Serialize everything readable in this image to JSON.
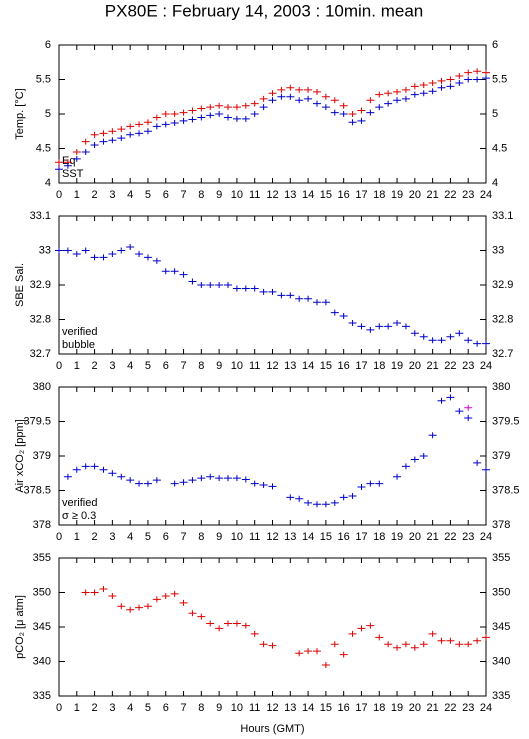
{
  "title": "PX80E : February 14, 2003 : 10min. mean",
  "chart_data": [
    {
      "type": "scatter",
      "ylabel": "Temp. [°C]",
      "x": [
        0,
        0.5,
        1,
        1.5,
        2,
        2.5,
        3,
        3.5,
        4,
        4.5,
        5,
        5.5,
        6,
        6.5,
        7,
        7.5,
        8,
        8.5,
        9,
        9.5,
        10,
        10.5,
        11,
        11.5,
        12,
        12.5,
        13,
        13.5,
        14,
        14.5,
        15,
        15.5,
        16,
        16.5,
        17,
        17.5,
        18,
        18.5,
        19,
        19.5,
        20,
        20.5,
        21,
        21.5,
        22,
        22.5,
        23,
        23.5,
        24
      ],
      "series": [
        {
          "name": "Eq",
          "color": "#dd0000",
          "values": [
            4.3,
            4.3,
            4.45,
            4.6,
            4.7,
            4.72,
            4.75,
            4.78,
            4.82,
            4.85,
            4.88,
            4.95,
            5.0,
            5.0,
            5.02,
            5.05,
            5.08,
            5.1,
            5.12,
            5.1,
            5.1,
            5.12,
            5.15,
            5.22,
            5.3,
            5.35,
            5.38,
            5.35,
            5.35,
            5.32,
            5.25,
            5.2,
            5.12,
            5.0,
            5.05,
            5.2,
            5.28,
            5.3,
            5.32,
            5.35,
            5.4,
            5.42,
            5.45,
            5.48,
            5.5,
            5.55,
            5.6,
            5.62,
            5.6
          ]
        },
        {
          "name": "SST",
          "color": "#0000cc",
          "values": [
            4.2,
            4.25,
            4.35,
            4.45,
            4.55,
            4.6,
            4.62,
            4.65,
            4.7,
            4.72,
            4.75,
            4.82,
            4.85,
            4.87,
            4.9,
            4.92,
            4.95,
            4.98,
            5.0,
            4.95,
            4.93,
            4.93,
            5.0,
            5.1,
            5.2,
            5.25,
            5.25,
            5.2,
            5.22,
            5.15,
            5.1,
            5.02,
            5.0,
            4.88,
            4.9,
            5.02,
            5.1,
            5.15,
            5.2,
            5.22,
            5.28,
            5.3,
            5.33,
            5.38,
            5.4,
            5.45,
            5.5,
            5.5,
            5.52
          ]
        }
      ],
      "xlim": [
        0,
        24
      ],
      "xticks": [
        0,
        1,
        2,
        3,
        4,
        5,
        6,
        7,
        8,
        9,
        10,
        11,
        12,
        13,
        14,
        15,
        16,
        17,
        18,
        19,
        20,
        21,
        22,
        23,
        24
      ],
      "ylim": [
        4,
        6
      ],
      "yticks": [
        4,
        4.5,
        5,
        5.5,
        6
      ]
    },
    {
      "type": "scatter",
      "ylabel": "SBE Sal.",
      "x": [
        0,
        0.5,
        1,
        1.5,
        2,
        2.5,
        3,
        3.5,
        4,
        4.5,
        5,
        5.5,
        6,
        6.5,
        7,
        7.5,
        8,
        8.5,
        9,
        9.5,
        10,
        10.5,
        11,
        11.5,
        12,
        12.5,
        13,
        13.5,
        14,
        14.5,
        15,
        15.5,
        16,
        16.5,
        17,
        17.5,
        18,
        18.5,
        19,
        19.5,
        20,
        20.5,
        21,
        21.5,
        22,
        22.5,
        23,
        23.5,
        24
      ],
      "series": [
        {
          "name": "verified",
          "color": "#0000cc",
          "values": [
            33.0,
            33.0,
            32.99,
            33.0,
            32.98,
            32.98,
            32.99,
            33.0,
            33.01,
            32.99,
            32.98,
            32.97,
            32.94,
            32.94,
            32.93,
            32.91,
            32.9,
            32.9,
            32.9,
            32.9,
            32.89,
            32.89,
            32.89,
            32.88,
            32.88,
            32.87,
            32.87,
            32.86,
            32.86,
            32.85,
            32.85,
            32.82,
            32.81,
            32.79,
            32.78,
            32.77,
            32.78,
            32.78,
            32.79,
            32.78,
            32.76,
            32.75,
            32.74,
            32.74,
            32.75,
            32.76,
            32.74,
            32.73,
            32.73
          ]
        },
        {
          "name": "bubble",
          "color": "#cc00cc",
          "values": [
            null,
            null,
            null,
            null,
            null,
            null,
            null,
            null,
            null,
            null,
            null,
            null,
            null,
            null,
            null,
            null,
            null,
            null,
            null,
            null,
            null,
            null,
            null,
            null,
            null,
            null,
            null,
            null,
            null,
            null,
            null,
            null,
            null,
            null,
            null,
            null,
            null,
            null,
            null,
            null,
            null,
            null,
            null,
            null,
            null,
            null,
            null,
            null,
            null
          ]
        }
      ],
      "xlim": [
        0,
        24
      ],
      "xticks": [
        0,
        1,
        2,
        3,
        4,
        5,
        6,
        7,
        8,
        9,
        10,
        11,
        12,
        13,
        14,
        15,
        16,
        17,
        18,
        19,
        20,
        21,
        22,
        23,
        24
      ],
      "ylim": [
        32.7,
        33.1
      ],
      "yticks": [
        32.7,
        32.8,
        32.9,
        33,
        33.1
      ]
    },
    {
      "type": "scatter",
      "ylabel": "Air xCO₂ [ppm]",
      "x": [
        0,
        0.5,
        1,
        1.5,
        2,
        2.5,
        3,
        3.5,
        4,
        4.5,
        5,
        5.5,
        6,
        6.5,
        7,
        7.5,
        8,
        8.5,
        9,
        9.5,
        10,
        10.5,
        11,
        11.5,
        12,
        12.5,
        13,
        13.5,
        14,
        14.5,
        15,
        15.5,
        16,
        16.5,
        17,
        17.5,
        18,
        18.5,
        19,
        19.5,
        20,
        20.5,
        21,
        21.5,
        22,
        22.5,
        23,
        23.5,
        24
      ],
      "series": [
        {
          "name": "verified",
          "color": "#0000cc",
          "values": [
            null,
            378.7,
            378.8,
            378.85,
            378.85,
            378.8,
            378.75,
            378.7,
            378.65,
            378.6,
            378.6,
            378.65,
            null,
            378.6,
            378.62,
            378.65,
            378.68,
            378.7,
            378.68,
            378.68,
            378.68,
            378.66,
            378.6,
            378.58,
            378.56,
            null,
            378.4,
            378.38,
            378.32,
            378.3,
            378.3,
            378.32,
            378.4,
            378.42,
            378.55,
            378.6,
            378.6,
            null,
            378.7,
            378.85,
            378.95,
            379.0,
            379.3,
            379.8,
            379.85,
            379.65,
            379.55,
            378.9,
            378.8
          ]
        },
        {
          "name": "σ ≥ 0.3",
          "color": "#cc00cc",
          "values": [
            null,
            null,
            null,
            null,
            null,
            null,
            null,
            null,
            null,
            null,
            null,
            null,
            null,
            null,
            null,
            null,
            null,
            null,
            null,
            null,
            null,
            null,
            null,
            null,
            null,
            null,
            null,
            null,
            null,
            null,
            null,
            null,
            null,
            null,
            null,
            null,
            null,
            null,
            null,
            null,
            null,
            null,
            null,
            null,
            null,
            null,
            379.7,
            null,
            null
          ]
        }
      ],
      "xlim": [
        0,
        24
      ],
      "xticks": [
        0,
        1,
        2,
        3,
        4,
        5,
        6,
        7,
        8,
        9,
        10,
        11,
        12,
        13,
        14,
        15,
        16,
        17,
        18,
        19,
        20,
        21,
        22,
        23,
        24
      ],
      "ylim": [
        378,
        380
      ],
      "yticks": [
        378,
        378.5,
        379,
        379.5,
        380
      ]
    },
    {
      "type": "scatter",
      "ylabel": "pCO₂ [μ atm]",
      "xlabel": "Hours (GMT)",
      "x": [
        0,
        0.5,
        1,
        1.5,
        2,
        2.5,
        3,
        3.5,
        4,
        4.5,
        5,
        5.5,
        6,
        6.5,
        7,
        7.5,
        8,
        8.5,
        9,
        9.5,
        10,
        10.5,
        11,
        11.5,
        12,
        12.5,
        13,
        13.5,
        14,
        14.5,
        15,
        15.5,
        16,
        16.5,
        17,
        17.5,
        18,
        18.5,
        19,
        19.5,
        20,
        20.5,
        21,
        21.5,
        22,
        22.5,
        23,
        23.5,
        24
      ],
      "series": [
        {
          "color": "#dd0000",
          "values": [
            null,
            null,
            null,
            350.0,
            350.0,
            350.5,
            349.5,
            348.0,
            347.5,
            347.8,
            348.0,
            349.0,
            349.5,
            349.8,
            348.5,
            347.0,
            346.5,
            345.5,
            344.8,
            345.5,
            345.5,
            345.2,
            344.0,
            342.5,
            342.3,
            null,
            null,
            341.2,
            341.5,
            341.5,
            339.5,
            342.5,
            341.0,
            344.0,
            344.8,
            345.2,
            343.5,
            342.5,
            342.0,
            342.5,
            342.0,
            342.5,
            344.0,
            343.0,
            343.0,
            342.5,
            342.5,
            343.0,
            343.5
          ]
        }
      ],
      "xlim": [
        0,
        24
      ],
      "xticks": [
        0,
        1,
        2,
        3,
        4,
        5,
        6,
        7,
        8,
        9,
        10,
        11,
        12,
        13,
        14,
        15,
        16,
        17,
        18,
        19,
        20,
        21,
        22,
        23,
        24
      ],
      "ylim": [
        335,
        355
      ],
      "yticks": [
        335,
        340,
        345,
        350,
        355
      ]
    }
  ]
}
